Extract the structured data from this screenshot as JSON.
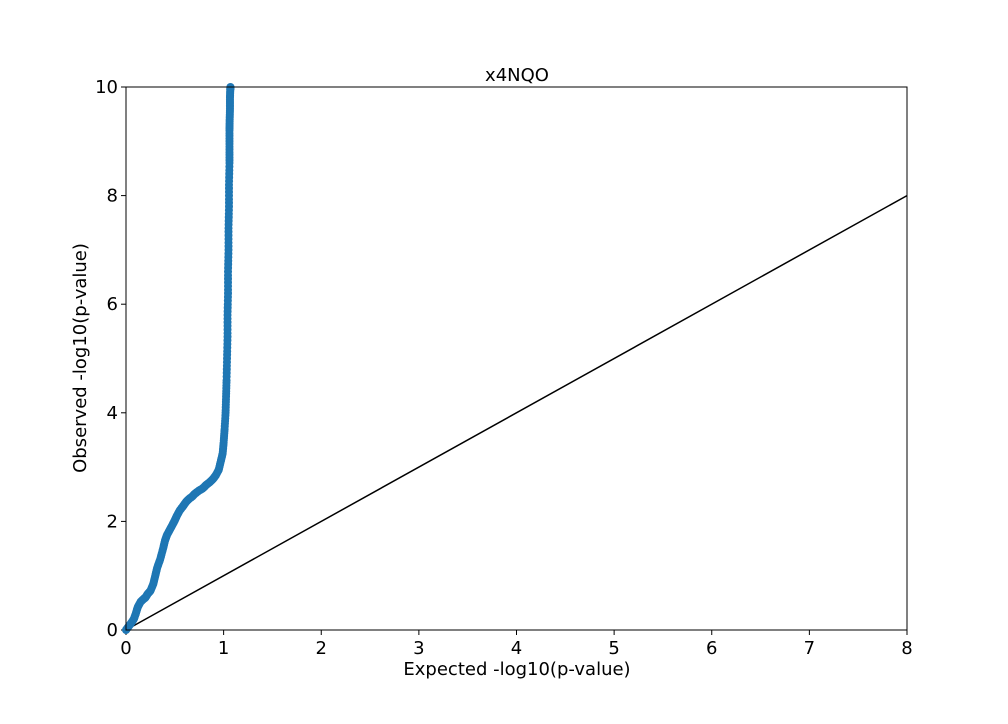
{
  "chart_data": {
    "type": "scatter",
    "title": "x4NQO",
    "xlabel": "Expected -log10(p-value)",
    "ylabel": "Observed -log10(p-value)",
    "xlim": [
      0,
      8
    ],
    "ylim": [
      0,
      10
    ],
    "xticks": [
      "0",
      "1",
      "2",
      "3",
      "4",
      "5",
      "6",
      "7",
      "8"
    ],
    "yticks": [
      "0",
      "2",
      "4",
      "6",
      "8",
      "10"
    ],
    "grid": false,
    "legend": "none",
    "reference_line": {
      "from": [
        0,
        0
      ],
      "to": [
        8,
        8
      ],
      "color": "#000000"
    },
    "series": [
      {
        "color": "#1f77b4",
        "x": [
          0.0,
          0.02,
          0.05,
          0.08,
          0.1,
          0.12,
          0.15,
          0.18,
          0.2,
          0.22,
          0.25,
          0.28,
          0.3,
          0.32,
          0.35,
          0.38,
          0.4,
          0.42,
          0.45,
          0.48,
          0.5,
          0.52,
          0.55,
          0.58,
          0.6,
          0.62,
          0.65,
          0.68,
          0.7,
          0.72,
          0.75,
          0.78,
          0.8,
          0.82,
          0.85,
          0.88,
          0.9,
          0.92,
          0.95,
          0.97,
          0.99,
          1.0,
          1.01,
          1.02,
          1.025,
          1.03,
          1.035,
          1.04,
          1.04,
          1.045,
          1.045,
          1.05,
          1.05,
          1.055,
          1.055,
          1.06,
          1.06,
          1.06,
          1.062,
          1.065,
          1.065,
          1.068,
          1.07
        ],
        "y": [
          0.0,
          0.05,
          0.12,
          0.2,
          0.3,
          0.42,
          0.52,
          0.57,
          0.6,
          0.66,
          0.72,
          0.85,
          1.0,
          1.15,
          1.3,
          1.5,
          1.65,
          1.75,
          1.85,
          1.95,
          2.02,
          2.1,
          2.2,
          2.27,
          2.32,
          2.37,
          2.42,
          2.46,
          2.5,
          2.53,
          2.57,
          2.6,
          2.63,
          2.67,
          2.71,
          2.76,
          2.8,
          2.85,
          2.95,
          3.1,
          3.25,
          3.45,
          3.7,
          4.0,
          4.3,
          4.6,
          5.0,
          5.4,
          5.8,
          6.2,
          6.6,
          7.0,
          7.4,
          7.8,
          8.2,
          8.6,
          8.9,
          9.2,
          9.4,
          9.6,
          9.8,
          9.95,
          10.0
        ]
      }
    ]
  }
}
